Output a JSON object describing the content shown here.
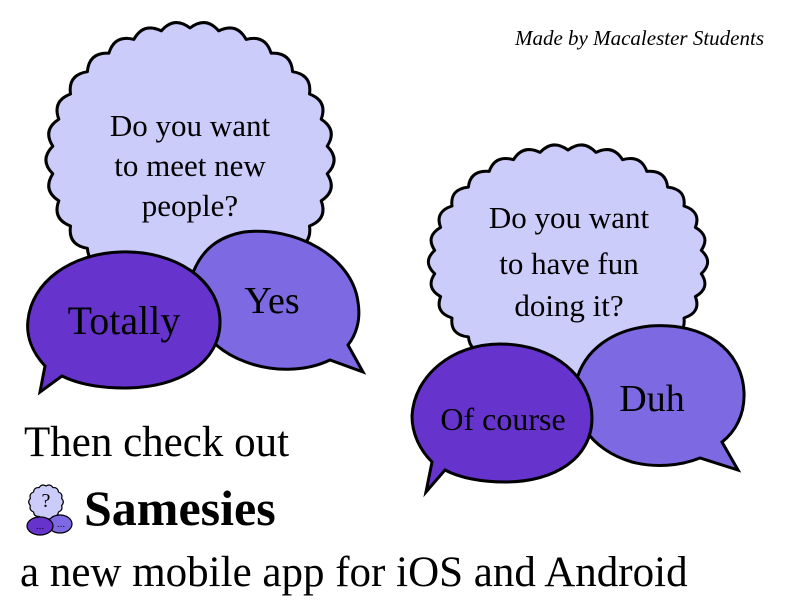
{
  "credit": "Made by Macalester Students",
  "question_1": {
    "lines": [
      "Do you want",
      "to meet new",
      "people?"
    ],
    "answers": [
      "Totally",
      "Yes"
    ]
  },
  "question_2": {
    "lines": [
      "Do you want",
      "to have fun",
      "doing it?"
    ],
    "answers": [
      "Of course",
      "Duh"
    ]
  },
  "tagline": "Then check out",
  "brand": {
    "name": "Samesies",
    "logo_icon": "samesies-logo-icon",
    "logo_glyph": "?",
    "logo_dots": "..."
  },
  "subline": "a new mobile app for iOS and Android",
  "colors": {
    "thought_fill": "#ccccfa",
    "answer_dark": "#6633cc",
    "answer_light": "#7d6ae2",
    "outline": "#000000"
  }
}
